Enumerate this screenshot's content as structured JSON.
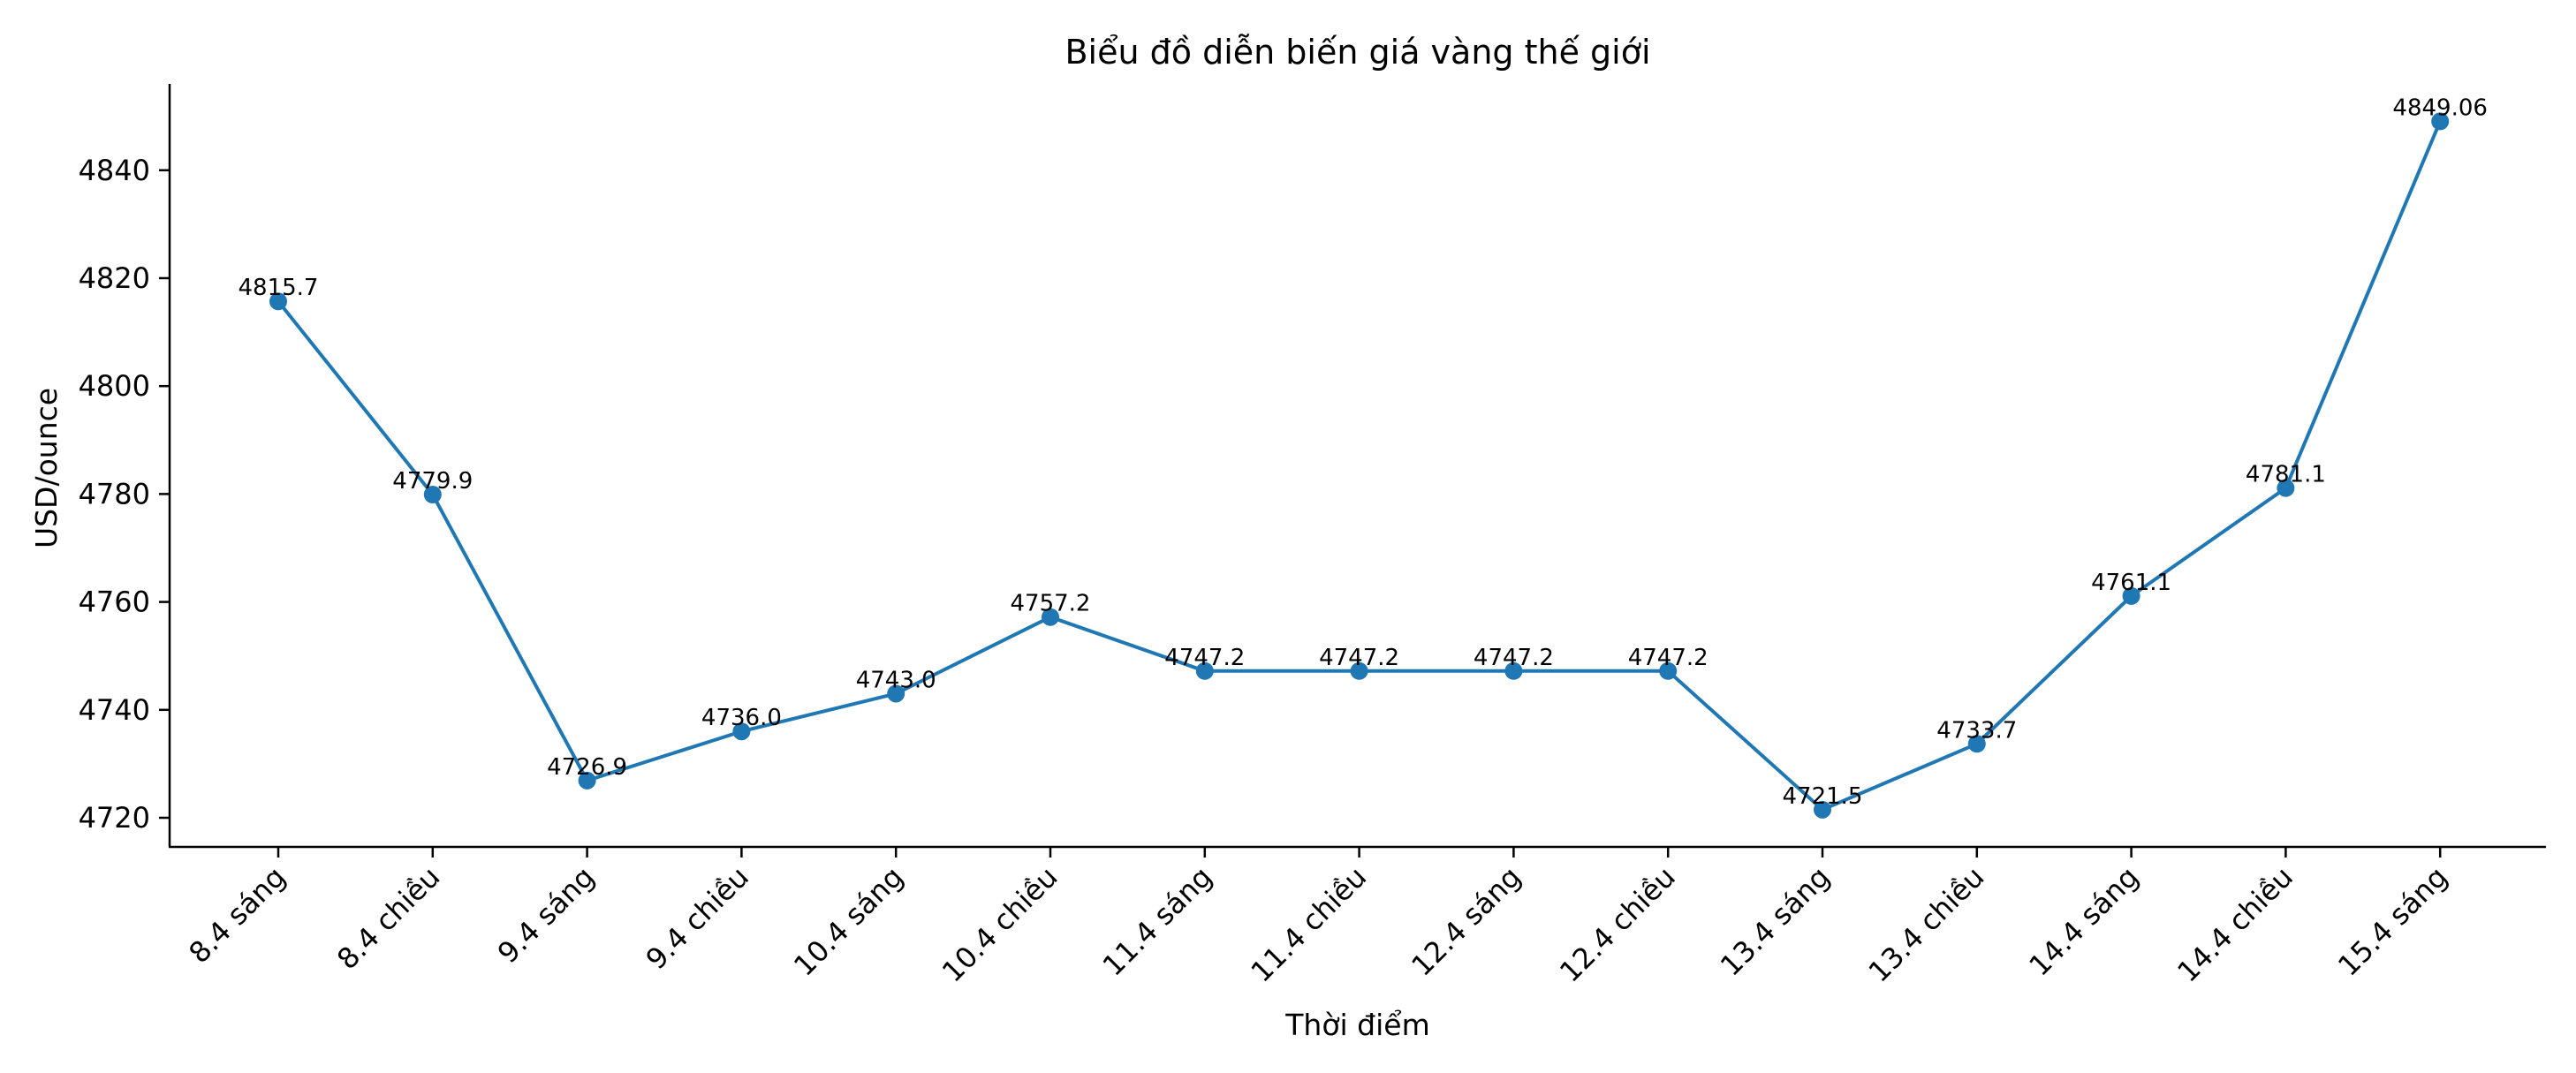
{
  "chart_data": {
    "type": "line",
    "title": "Biểu đồ diễn biến giá vàng thế giới",
    "xlabel": "Thời điểm",
    "ylabel": "USD/ounce",
    "categories": [
      "8.4 sáng",
      "8.4 chiều",
      "9.4 sáng",
      "9.4 chiều",
      "10.4 sáng",
      "10.4 chiều",
      "11.4 sáng",
      "11.4 chiều",
      "12.4 sáng",
      "12.4 chiều",
      "13.4 sáng",
      "13.4 chiều",
      "14.4 sáng",
      "14.4 chiều",
      "15.4 sáng"
    ],
    "values": [
      4815.7,
      4779.9,
      4726.9,
      4736.0,
      4743.0,
      4757.2,
      4747.2,
      4747.2,
      4747.2,
      4747.2,
      4721.5,
      4733.7,
      4761.1,
      4781.1,
      4849.06
    ],
    "data_labels": [
      "4815.7",
      "4779.9",
      "4726.9",
      "4736.0",
      "4743.0",
      "4757.2",
      "4747.2",
      "4747.2",
      "4747.2",
      "4747.2",
      "4721.5",
      "4733.7",
      "4761.1",
      "4781.1",
      "4849.06"
    ],
    "yticks": [
      4720,
      4740,
      4760,
      4780,
      4800,
      4820,
      4840
    ],
    "ylim": [
      4714.6,
      4856.0
    ],
    "grid": false,
    "line_color": "#1f77b4"
  }
}
